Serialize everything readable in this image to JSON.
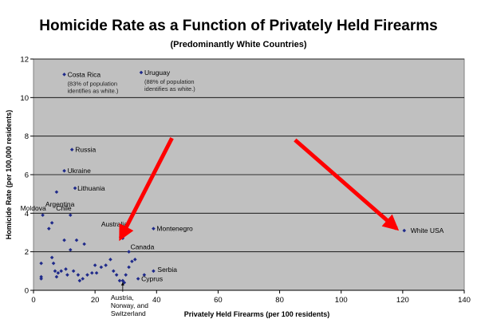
{
  "chart_data": {
    "type": "scatter",
    "title": "Homicide Rate as a Function of Privately Held Firearms",
    "subtitle": "(Predominantly White Countries)",
    "xlabel": "Privately Held Firearms (per 100 residents)",
    "ylabel": "Homicide Rate (per 100,000 residents)",
    "xlim": [
      0,
      140
    ],
    "ylim": [
      0,
      12
    ],
    "xticks": [
      0,
      20,
      40,
      60,
      80,
      100,
      120,
      140
    ],
    "yticks": [
      0,
      2,
      4,
      6,
      8,
      10,
      12
    ],
    "grid": "horizontal",
    "background": "#c0c0c0",
    "marker_color": "#1f2a8a",
    "arrow_color": "#ff0000",
    "points": [
      {
        "x": 10,
        "y": 11.2,
        "label": "Costa Rica",
        "note": [
          "(83% of population",
          "identifies as white.)"
        ]
      },
      {
        "x": 35,
        "y": 11.3,
        "label": "Uruguay",
        "note": [
          "(88% of population",
          "identifies as white.)"
        ]
      },
      {
        "x": 12.5,
        "y": 7.3,
        "label": "Russia"
      },
      {
        "x": 10,
        "y": 6.2,
        "label": "Ukraine"
      },
      {
        "x": 13.5,
        "y": 5.3,
        "label": "Lithuania"
      },
      {
        "x": 7.5,
        "y": 5.1,
        "label": "Argentina"
      },
      {
        "x": 3,
        "y": 3.9,
        "label": "Moldova"
      },
      {
        "x": 12,
        "y": 3.9,
        "label": "Chile"
      },
      {
        "x": 29,
        "y": 2.7,
        "label": "Australia"
      },
      {
        "x": 39,
        "y": 3.2,
        "label": "Montenegro"
      },
      {
        "x": 31,
        "y": 2.0,
        "label": "Canada"
      },
      {
        "x": 39,
        "y": 1.0,
        "label": "Serbia"
      },
      {
        "x": 34,
        "y": 0.6,
        "label": "Cyprus"
      },
      {
        "x": 29,
        "y": 0.5,
        "label": "Austria, Norway, and Switzerland"
      },
      {
        "x": 120.5,
        "y": 3.1,
        "label": "White USA"
      },
      {
        "x": 5,
        "y": 3.2
      },
      {
        "x": 6,
        "y": 3.5
      },
      {
        "x": 2.5,
        "y": 1.4
      },
      {
        "x": 2.5,
        "y": 0.7
      },
      {
        "x": 2.5,
        "y": 0.6
      },
      {
        "x": 6,
        "y": 1.7
      },
      {
        "x": 6.5,
        "y": 1.4
      },
      {
        "x": 7,
        "y": 1.0
      },
      {
        "x": 7.5,
        "y": 0.7
      },
      {
        "x": 8,
        "y": 0.9
      },
      {
        "x": 9,
        "y": 1.0
      },
      {
        "x": 10,
        "y": 2.6
      },
      {
        "x": 10.5,
        "y": 1.1
      },
      {
        "x": 11,
        "y": 0.8
      },
      {
        "x": 12,
        "y": 2.1
      },
      {
        "x": 13,
        "y": 1.0
      },
      {
        "x": 14,
        "y": 2.6
      },
      {
        "x": 14.5,
        "y": 0.8
      },
      {
        "x": 15,
        "y": 0.5
      },
      {
        "x": 16,
        "y": 0.6
      },
      {
        "x": 16.5,
        "y": 2.4
      },
      {
        "x": 17.5,
        "y": 0.8
      },
      {
        "x": 19,
        "y": 0.9
      },
      {
        "x": 20,
        "y": 1.3
      },
      {
        "x": 20.5,
        "y": 0.9
      },
      {
        "x": 22,
        "y": 1.2
      },
      {
        "x": 23.5,
        "y": 1.3
      },
      {
        "x": 25,
        "y": 1.6
      },
      {
        "x": 26,
        "y": 1.0
      },
      {
        "x": 27,
        "y": 0.8
      },
      {
        "x": 28,
        "y": 0.5
      },
      {
        "x": 30,
        "y": 0.8
      },
      {
        "x": 31,
        "y": 1.2
      },
      {
        "x": 32,
        "y": 1.5
      },
      {
        "x": 33,
        "y": 1.6
      },
      {
        "x": 36,
        "y": 0.8
      },
      {
        "x": 29.5,
        "y": 0.4
      }
    ],
    "arrows": [
      {
        "from": [
          45,
          7.9
        ],
        "to": [
          28.3,
          2.7
        ]
      },
      {
        "from": [
          85,
          7.8
        ],
        "to": [
          118,
          3.2
        ]
      }
    ]
  }
}
